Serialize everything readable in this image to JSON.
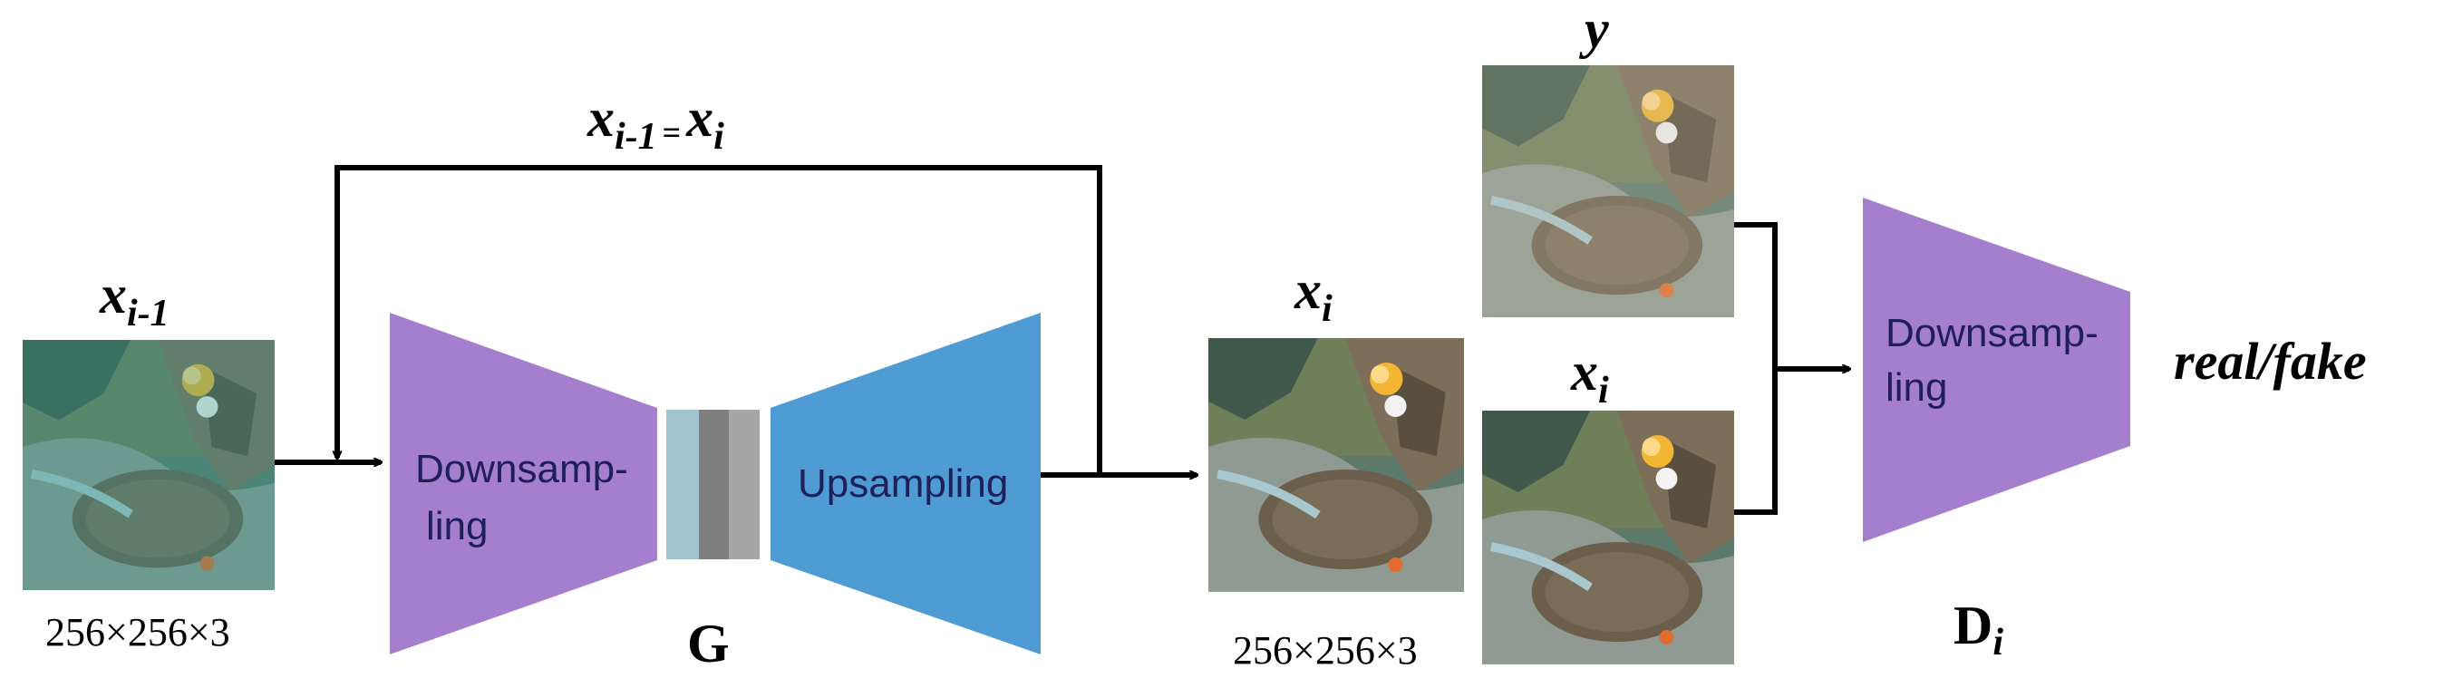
{
  "input": {
    "label_main": "x",
    "label_sub": "i-1",
    "size_text": "256×256×3"
  },
  "feedback": {
    "label_left_main": "x",
    "label_left_sub": "i-1",
    "label_eq": "=",
    "label_right_main": "x",
    "label_right_sub": "i"
  },
  "generator": {
    "encoder_label_line1": "Downsamp-",
    "encoder_label_line2": "ling",
    "decoder_label": "Upsampling",
    "name": "G"
  },
  "output": {
    "label_main": "x",
    "label_sub": "i",
    "size_text": "256×256×3"
  },
  "discriminator_inputs": {
    "real_label": "y",
    "fake_label_main": "x",
    "fake_label_sub": "i"
  },
  "discriminator": {
    "label_line1": "Downsamp-",
    "label_line2": "ling",
    "name_main": "D",
    "name_sub": "i",
    "output_label": "real/fake"
  },
  "colors": {
    "encoder": "#a57fcd",
    "decoder": "#4f9bd3",
    "discriminator": "#a57fcd",
    "bottleneck": [
      "#9fc4d0",
      "#7f7f7f",
      "#a6a6a6"
    ],
    "line": "#000000"
  },
  "icons": {
    "underwater_image": "stingray-photo-icon"
  }
}
